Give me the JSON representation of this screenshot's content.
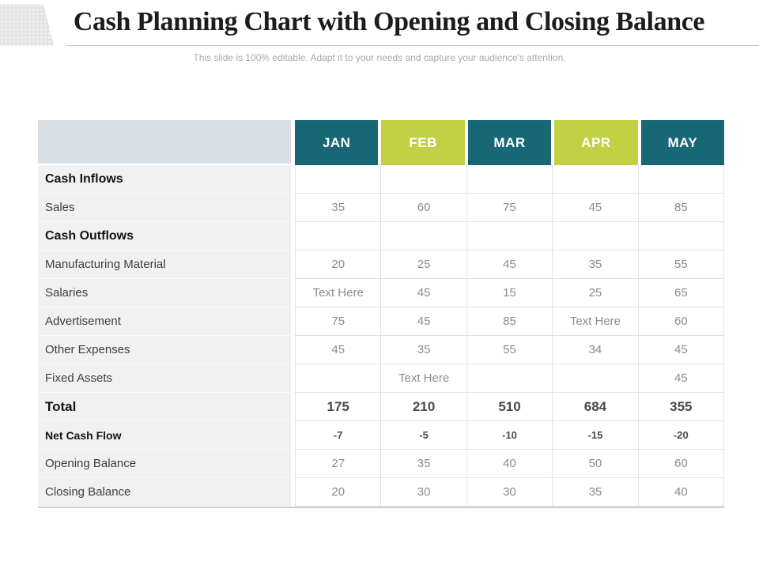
{
  "slide": {
    "title": "Cash Planning Chart with Opening and Closing Balance",
    "subtitle": "This slide is 100% editable. Adapt it to your needs and capture your audience's attention."
  },
  "colors": {
    "teal": "#186775",
    "lime": "#C2D144",
    "header_label_bg": "#D9DEE3",
    "label_column_bg": "#F1F1F2",
    "grid_line": "#E2E2E2",
    "value_text": "#8C8C8C",
    "label_text": "#3E3E3E",
    "section_text": "#141414",
    "title_text": "#1C1C1C",
    "subtitle_text": "#A9A9A9",
    "corner_triangle": "#E3E3E3",
    "divider": "#C9C9C9"
  },
  "table": {
    "months": [
      "JAN",
      "FEB",
      "MAR",
      "APR",
      "MAY"
    ],
    "rows": [
      {
        "label": "Cash Inflows",
        "type": "section",
        "values": [
          "",
          "",
          "",
          "",
          ""
        ]
      },
      {
        "label": "Sales",
        "type": "data",
        "values": [
          "35",
          "60",
          "75",
          "45",
          "85"
        ]
      },
      {
        "label": "Cash Outflows",
        "type": "section",
        "values": [
          "",
          "",
          "",
          "",
          ""
        ]
      },
      {
        "label": "Manufacturing Material",
        "type": "data",
        "values": [
          "20",
          "25",
          "45",
          "35",
          "55"
        ]
      },
      {
        "label": "Salaries",
        "type": "data",
        "values": [
          "Text Here",
          "45",
          "15",
          "25",
          "65"
        ]
      },
      {
        "label": "Advertisement",
        "type": "data",
        "values": [
          "75",
          "45",
          "85",
          "Text Here",
          "60"
        ]
      },
      {
        "label": "Other Expenses",
        "type": "data",
        "values": [
          "45",
          "35",
          "55",
          "34",
          "45"
        ]
      },
      {
        "label": "Fixed Assets",
        "type": "data",
        "values": [
          "",
          "Text Here",
          "",
          "",
          "45"
        ]
      },
      {
        "label": "Total",
        "type": "total",
        "values": [
          "175",
          "210",
          "510",
          "684",
          "355"
        ]
      },
      {
        "label": "Net Cash Flow",
        "type": "netflow",
        "values": [
          "-7",
          "-5",
          "-10",
          "-15",
          "-20"
        ]
      },
      {
        "label": "Opening Balance",
        "type": "data",
        "values": [
          "27",
          "35",
          "40",
          "50",
          "60"
        ]
      },
      {
        "label": "Closing Balance",
        "type": "data",
        "values": [
          "20",
          "30",
          "30",
          "35",
          "40"
        ]
      }
    ]
  },
  "chart_data": {
    "type": "table",
    "title": "Cash Planning Chart with Opening and Closing Balance",
    "columns": [
      "",
      "JAN",
      "FEB",
      "MAR",
      "APR",
      "MAY"
    ],
    "rows": [
      [
        "Cash Inflows",
        "",
        "",
        "",
        "",
        ""
      ],
      [
        "Sales",
        35,
        60,
        75,
        45,
        85
      ],
      [
        "Cash Outflows",
        "",
        "",
        "",
        "",
        ""
      ],
      [
        "Manufacturing Material",
        20,
        25,
        45,
        35,
        55
      ],
      [
        "Salaries",
        "Text Here",
        45,
        15,
        25,
        65
      ],
      [
        "Advertisement",
        75,
        45,
        85,
        "Text Here",
        60
      ],
      [
        "Other Expenses",
        45,
        35,
        55,
        34,
        45
      ],
      [
        "Fixed Assets",
        "",
        "Text Here",
        "",
        "",
        45
      ],
      [
        "Total",
        175,
        210,
        510,
        684,
        355
      ],
      [
        "Net Cash Flow",
        -7,
        -5,
        -10,
        -15,
        -20
      ],
      [
        "Opening Balance",
        27,
        35,
        40,
        50,
        60
      ],
      [
        "Closing Balance",
        20,
        30,
        30,
        35,
        40
      ]
    ]
  }
}
